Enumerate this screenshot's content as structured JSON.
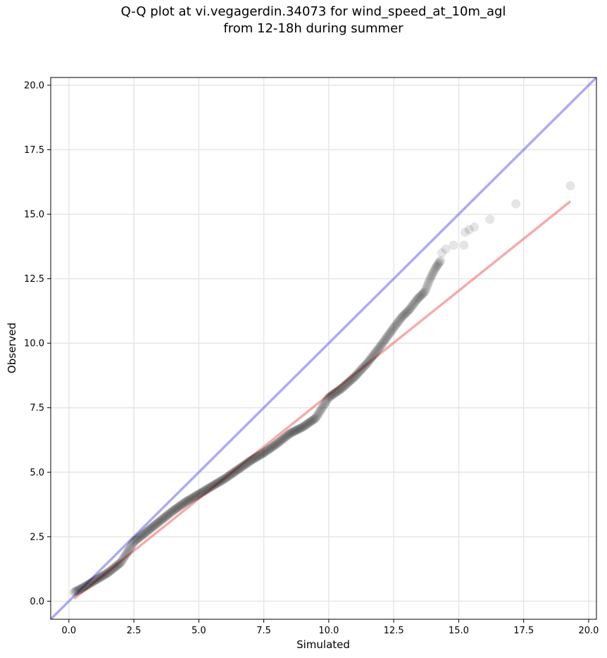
{
  "chart_data": {
    "type": "scatter",
    "title_line1": "Q-Q plot at vi.vegagerdin.34073 for wind_speed_at_10m_agl",
    "title_line2": "from 12-18h during summer",
    "xlabel": "Simulated",
    "ylabel": "Observed",
    "xlim": [
      -0.7,
      20.3
    ],
    "ylim": [
      -0.7,
      20.3
    ],
    "xticks": [
      0.0,
      2.5,
      5.0,
      7.5,
      10.0,
      12.5,
      15.0,
      17.5,
      20.0
    ],
    "xtick_labels": [
      "0.0",
      "2.5",
      "5.0",
      "7.5",
      "10.0",
      "12.5",
      "15.0",
      "17.5",
      "20.0"
    ],
    "yticks": [
      0.0,
      2.5,
      5.0,
      7.5,
      10.0,
      12.5,
      15.0,
      17.5,
      20.0
    ],
    "ytick_labels": [
      "0.0",
      "2.5",
      "5.0",
      "7.5",
      "10.0",
      "12.5",
      "15.0",
      "17.5",
      "20.0"
    ],
    "grid": true,
    "identity_line": {
      "color": "#6666ee",
      "from": [
        -0.7,
        -0.7
      ],
      "to": [
        20.3,
        20.3
      ]
    },
    "fit_line": {
      "color": "#ee6666",
      "from": [
        0.2,
        0.1
      ],
      "to": [
        19.3,
        15.5
      ]
    },
    "point_color": "#000000",
    "anchors": [
      [
        0.2,
        0.35
      ],
      [
        0.5,
        0.5
      ],
      [
        1.0,
        0.8
      ],
      [
        1.5,
        1.1
      ],
      [
        2.0,
        1.5
      ],
      [
        2.5,
        2.3
      ],
      [
        3.0,
        2.7
      ],
      [
        3.5,
        3.1
      ],
      [
        4.0,
        3.5
      ],
      [
        4.5,
        3.85
      ],
      [
        5.0,
        4.15
      ],
      [
        5.5,
        4.45
      ],
      [
        6.0,
        4.75
      ],
      [
        6.5,
        5.1
      ],
      [
        7.0,
        5.45
      ],
      [
        7.5,
        5.75
      ],
      [
        8.0,
        6.1
      ],
      [
        8.5,
        6.5
      ],
      [
        9.0,
        6.75
      ],
      [
        9.5,
        7.1
      ],
      [
        10.0,
        7.9
      ],
      [
        10.5,
        8.25
      ],
      [
        11.0,
        8.7
      ],
      [
        11.5,
        9.25
      ],
      [
        12.0,
        9.9
      ],
      [
        12.5,
        10.6
      ],
      [
        12.8,
        11.0
      ],
      [
        13.1,
        11.3
      ],
      [
        13.4,
        11.7
      ],
      [
        13.7,
        12.0
      ],
      [
        13.9,
        12.5
      ],
      [
        14.1,
        12.9
      ],
      [
        14.3,
        13.2
      ]
    ],
    "tail_points": [
      [
        14.35,
        13.5
      ],
      [
        14.5,
        13.65
      ],
      [
        14.8,
        13.8
      ],
      [
        15.2,
        13.8
      ],
      [
        15.25,
        14.3
      ],
      [
        15.4,
        14.4
      ],
      [
        15.6,
        14.5
      ],
      [
        16.2,
        14.8
      ],
      [
        17.2,
        15.4
      ],
      [
        19.3,
        16.1
      ]
    ]
  }
}
